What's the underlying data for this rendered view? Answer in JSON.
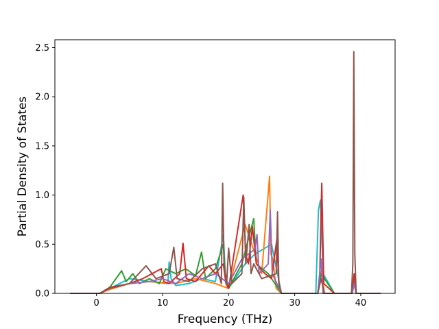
{
  "chart_data": {
    "type": "line",
    "title": "",
    "xlabel": "Frequency (THz)",
    "ylabel": "Partial Density of States",
    "xlim": [
      -6.3,
      45.2
    ],
    "ylim": [
      0.0,
      2.58
    ],
    "xticks": [
      0,
      10,
      20,
      30,
      40
    ],
    "yticks": [
      0.0,
      0.5,
      1.0,
      1.5,
      2.0,
      2.5
    ],
    "xtick_labels": [
      "0",
      "10",
      "20",
      "30",
      "40"
    ],
    "ytick_labels": [
      "0.0",
      "0.5",
      "1.0",
      "1.5",
      "2.0",
      "2.5"
    ],
    "grid": false,
    "legend": "none",
    "series_colors": [
      "#1f77b4",
      "#ff7f0e",
      "#2ca02c",
      "#d62728",
      "#9467bd",
      "#8c564b",
      "#e377c2",
      "#7f7f7f",
      "#bcbd22",
      "#17becf"
    ],
    "series": [
      {
        "color": "#17becf",
        "x": [
          -4,
          0.5,
          2,
          5,
          8,
          10.8,
          11,
          11.3,
          12,
          14,
          16,
          18,
          19.2,
          19.5,
          20,
          22.5,
          24,
          26.5,
          28,
          33.2,
          33.6,
          33.9,
          34.3,
          36,
          38.7,
          39,
          39.3,
          43
        ],
        "y": [
          0,
          0,
          0.05,
          0.15,
          0.12,
          0.1,
          0.32,
          0.15,
          0.08,
          0.1,
          0.15,
          0.12,
          0.6,
          0.2,
          0.05,
          0.3,
          0.4,
          0.5,
          0,
          0,
          0.85,
          0.95,
          0.2,
          0,
          0,
          0.15,
          0,
          0
        ]
      },
      {
        "color": "#ff7f0e",
        "x": [
          -4,
          0.5,
          2,
          5,
          8,
          12,
          15,
          18,
          20,
          22.5,
          24,
          25,
          26.2,
          26.4,
          26.7,
          27.2,
          28,
          33.5,
          34.1,
          34.5,
          36,
          38.7,
          39,
          39.3,
          43
        ],
        "y": [
          0,
          0,
          0.04,
          0.1,
          0.12,
          0.1,
          0.15,
          0.1,
          0.05,
          0.7,
          0.4,
          0.2,
          1.19,
          0.4,
          0.35,
          0.05,
          0,
          0,
          0.25,
          0,
          0,
          0,
          0.1,
          0,
          0
        ]
      },
      {
        "color": "#2ca02c",
        "x": [
          -4,
          0.5,
          2,
          3.8,
          4.5,
          5.5,
          6.5,
          8,
          9.5,
          10.5,
          12,
          13.5,
          15,
          15.9,
          16.5,
          18,
          19.2,
          19.5,
          20,
          22,
          23.8,
          24.2,
          26,
          28,
          33.5,
          34,
          36,
          38.7,
          39,
          39.3,
          43
        ],
        "y": [
          0,
          0,
          0.06,
          0.23,
          0.12,
          0.2,
          0.1,
          0.15,
          0.1,
          0.25,
          0.2,
          0.25,
          0.18,
          0.42,
          0.15,
          0.25,
          0.5,
          0.15,
          0.05,
          0.3,
          0.76,
          0.3,
          0.2,
          0,
          0,
          0.2,
          0,
          0,
          0.1,
          0,
          0
        ]
      },
      {
        "color": "#d62728",
        "x": [
          -4,
          0.5,
          2,
          5,
          7,
          9.8,
          10.2,
          11,
          12.6,
          13.1,
          13.6,
          15,
          17,
          18,
          19.2,
          19.6,
          20,
          22.2,
          22.6,
          23,
          23.6,
          24.2,
          25.5,
          26.5,
          27.3,
          27.6,
          28,
          33.5,
          33.8,
          34.1,
          34.4,
          36,
          38.7,
          39,
          39.3,
          43
        ],
        "y": [
          0,
          0,
          0.06,
          0.1,
          0.15,
          0.25,
          0.12,
          0.1,
          0.2,
          0.51,
          0.15,
          0.12,
          0.28,
          0.2,
          0.3,
          0.1,
          0.05,
          1.0,
          0.4,
          0.3,
          0.68,
          0.3,
          0.2,
          0.15,
          0.55,
          0.1,
          0,
          0,
          0.2,
          1.12,
          0.1,
          0,
          0,
          0.2,
          0,
          0
        ]
      },
      {
        "color": "#9467bd",
        "x": [
          -4,
          0.5,
          2,
          5,
          8,
          10,
          12,
          14,
          16,
          18,
          20,
          22,
          24,
          24.3,
          24.6,
          26,
          26.3,
          26.6,
          28,
          33.5,
          34,
          34.3,
          36,
          38.7,
          39,
          39.3,
          43
        ],
        "y": [
          0,
          0,
          0.05,
          0.1,
          0.12,
          0.15,
          0.1,
          0.2,
          0.15,
          0.2,
          0.1,
          0.35,
          0.45,
          0.6,
          0.2,
          0.3,
          0.85,
          0.2,
          0,
          0,
          0.35,
          0,
          0,
          0,
          0.1,
          0,
          0
        ]
      },
      {
        "color": "#8c564b",
        "x": [
          -4,
          0.5,
          2,
          5,
          7.5,
          9,
          11,
          11.7,
          12.2,
          14,
          16,
          18,
          18.9,
          19.1,
          19.3,
          19.7,
          20,
          20.5,
          22,
          22.3,
          22.6,
          23.1,
          23.4,
          23.8,
          25,
          27.2,
          27.4,
          27.6,
          28,
          33.5,
          34,
          34.5,
          36,
          38.6,
          38.8,
          38.95,
          39.1,
          39.3,
          43
        ],
        "y": [
          0,
          0,
          0.05,
          0.1,
          0.28,
          0.15,
          0.2,
          0.47,
          0.15,
          0.12,
          0.25,
          0.3,
          0.1,
          1.12,
          0.3,
          0.1,
          0.46,
          0.1,
          0.2,
          0.98,
          0.3,
          0.7,
          0.2,
          0.3,
          0.15,
          0.2,
          0.83,
          0.1,
          0,
          0,
          0.15,
          0,
          0,
          0,
          0.3,
          2.46,
          0.4,
          0,
          0
        ]
      }
    ]
  }
}
